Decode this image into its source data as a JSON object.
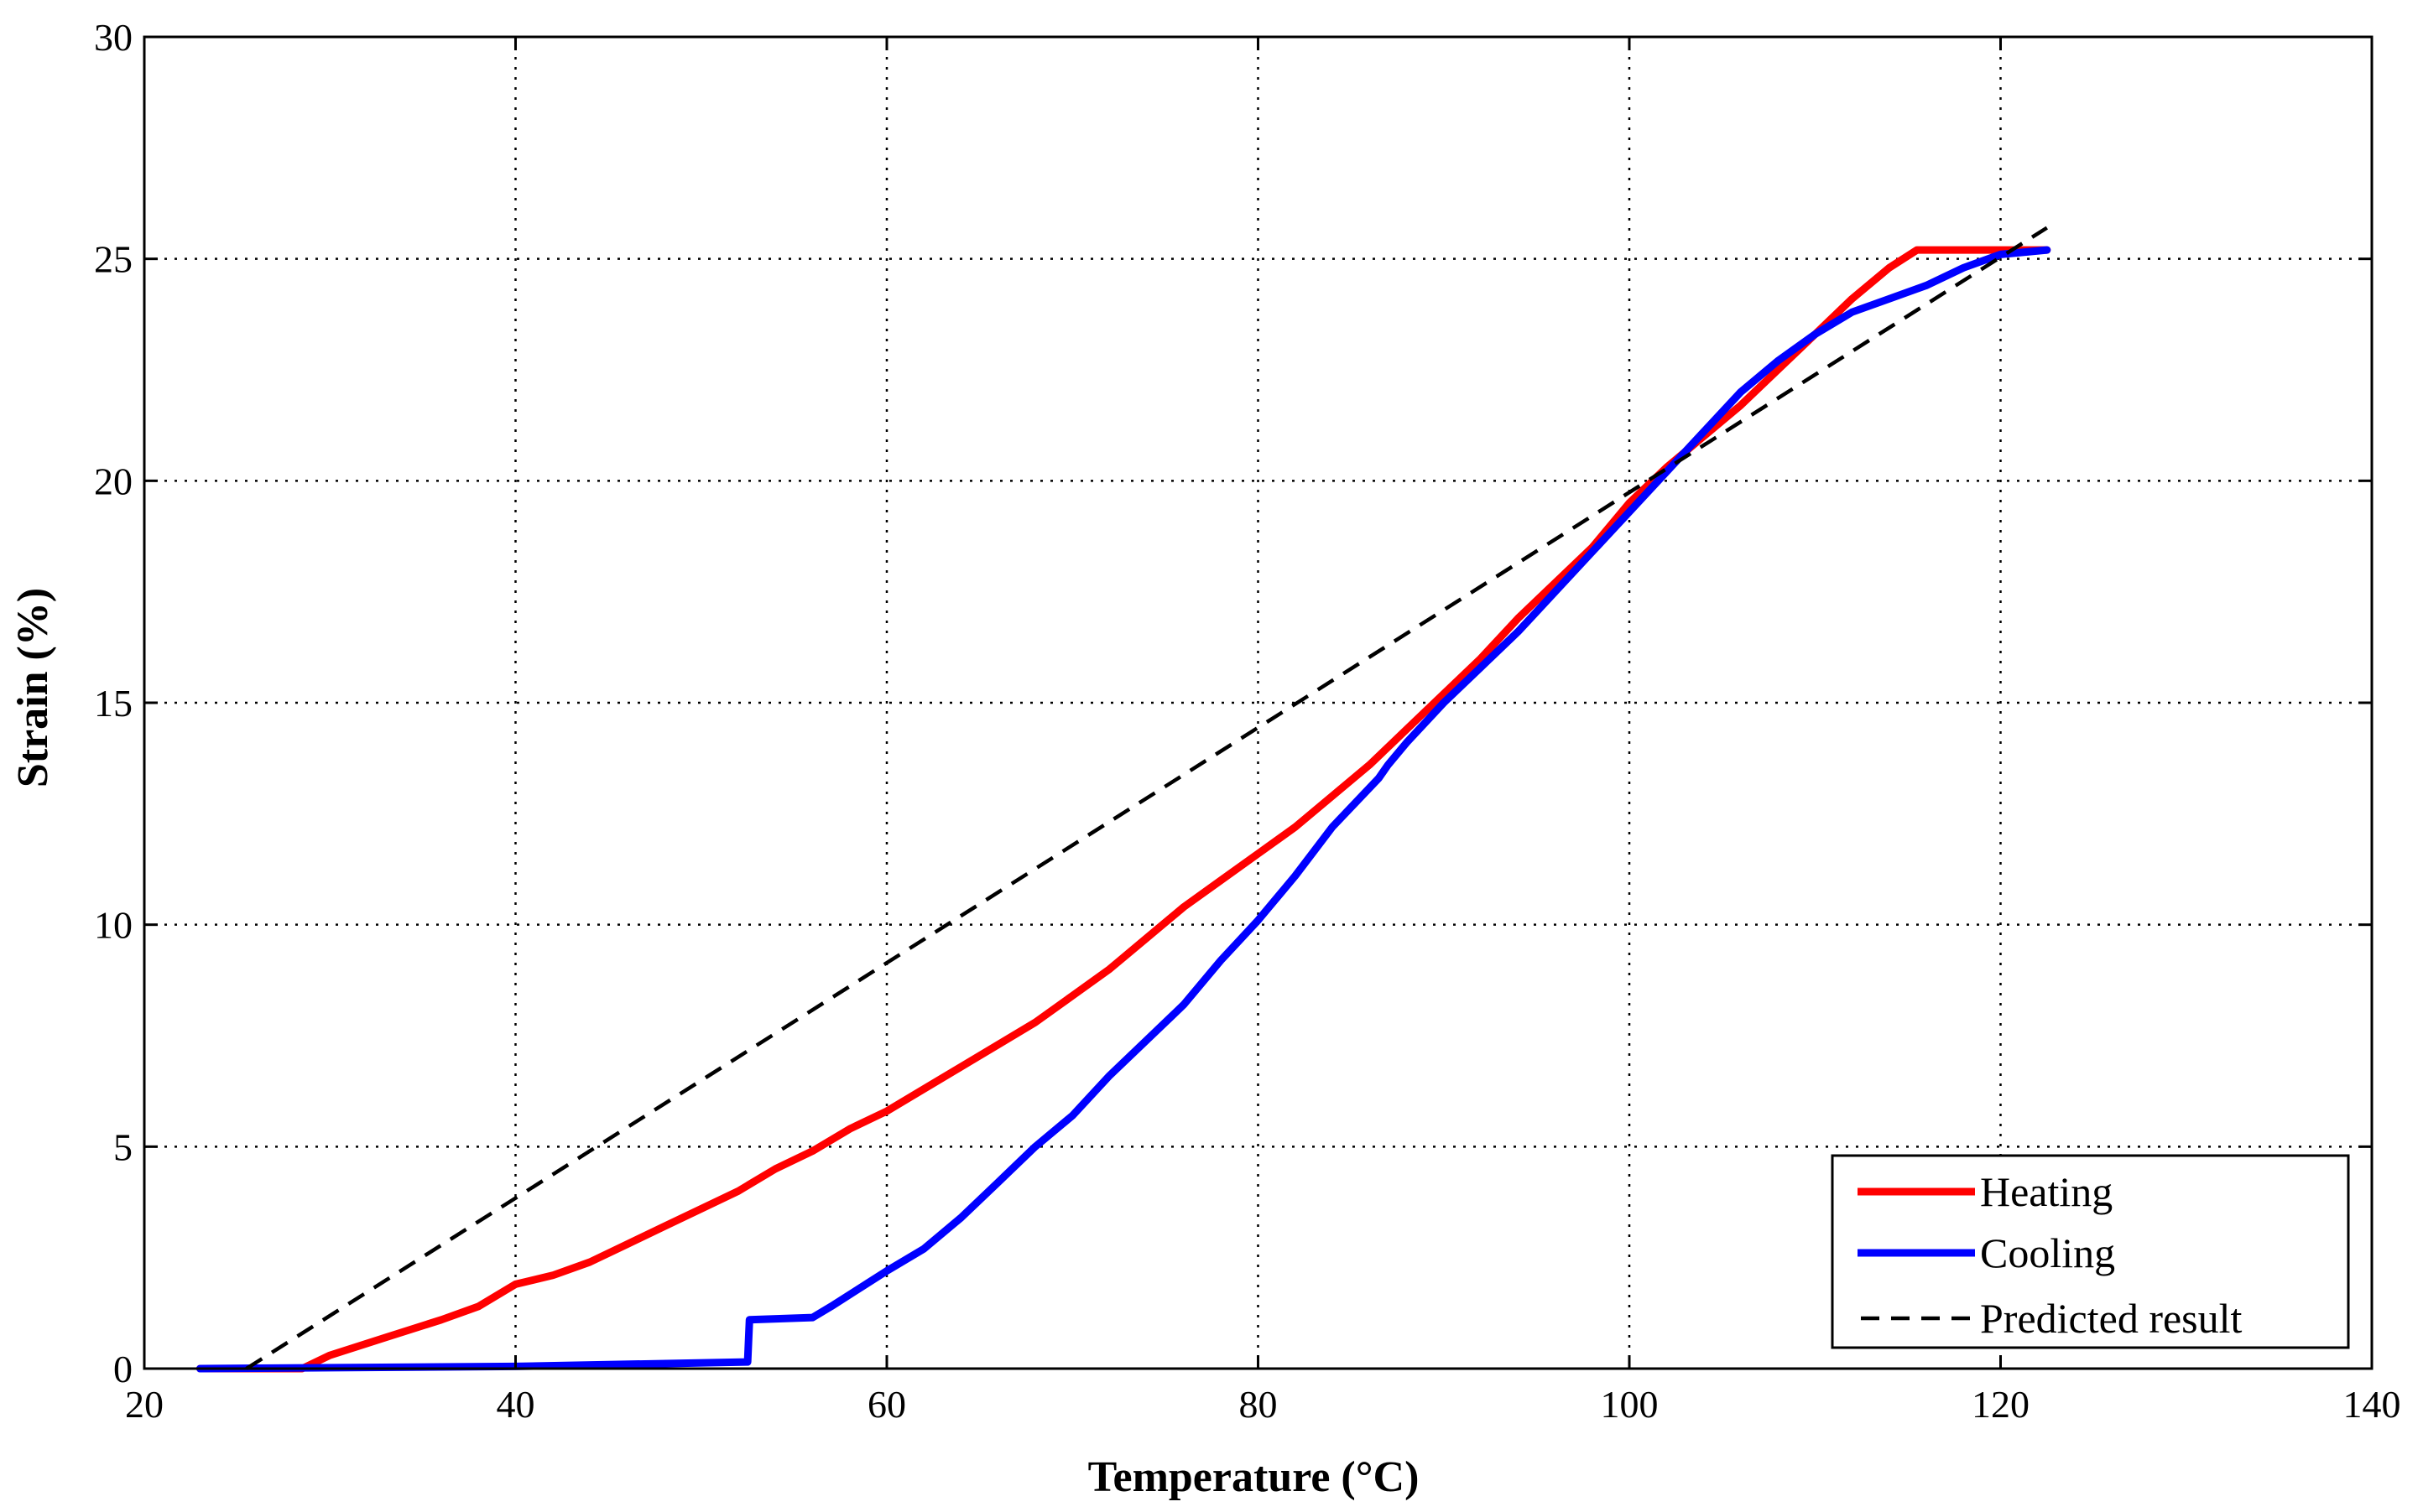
{
  "chart_data": {
    "type": "line",
    "title": "",
    "xlabel": "Temperature (°C)",
    "ylabel": "Strain (%)",
    "xlim": [
      20,
      140
    ],
    "ylim": [
      0,
      30
    ],
    "x_ticks": [
      20,
      40,
      60,
      80,
      100,
      120,
      140
    ],
    "y_ticks": [
      0,
      5,
      10,
      15,
      20,
      25,
      30
    ],
    "x_tick_labels": [
      "20",
      "40",
      "60",
      "80",
      "100",
      "120",
      "140"
    ],
    "y_tick_labels": [
      "0",
      "5",
      "10",
      "15",
      "20",
      "25",
      "30"
    ],
    "grid": "dotted",
    "legend_position": "bottom-right",
    "series": [
      {
        "name": "Heating",
        "color": "#ff0000",
        "style": "solid",
        "x": [
          23,
          28.5,
          30,
          33,
          36,
          38,
          40,
          42,
          44,
          46,
          48,
          50,
          52,
          54,
          56,
          58,
          60,
          62,
          64,
          66,
          68,
          70,
          72,
          74,
          76,
          78,
          80,
          82,
          84,
          86,
          88,
          90,
          92,
          94,
          96,
          98,
          100,
          102,
          104,
          106,
          108,
          110,
          112,
          114,
          115.5,
          117,
          120,
          122.5
        ],
        "values": [
          0,
          0,
          0.3,
          0.7,
          1.1,
          1.4,
          1.9,
          2.1,
          2.4,
          2.8,
          3.2,
          3.6,
          4.0,
          4.5,
          4.9,
          5.4,
          5.8,
          6.3,
          6.8,
          7.3,
          7.8,
          8.4,
          9.0,
          9.7,
          10.4,
          11.0,
          11.6,
          12.2,
          12.9,
          13.6,
          14.4,
          15.2,
          16.0,
          16.9,
          17.7,
          18.5,
          19.5,
          20.3,
          21.0,
          21.7,
          22.5,
          23.3,
          24.1,
          24.8,
          25.2,
          25.2,
          25.2,
          25.2
        ]
      },
      {
        "name": "Cooling",
        "color": "#0000ff",
        "style": "solid",
        "x": [
          23,
          40,
          52.5,
          52.6,
          56,
          57,
          60,
          62,
          64,
          66,
          68,
          70,
          72,
          74,
          76,
          78,
          80,
          82,
          84,
          86.5,
          87,
          88,
          90,
          92,
          94,
          96,
          98,
          100,
          102,
          104,
          106,
          108,
          110,
          112,
          114,
          116,
          118,
          120,
          122.5
        ],
        "values": [
          0,
          0.05,
          0.15,
          1.1,
          1.15,
          1.4,
          2.2,
          2.7,
          3.4,
          4.2,
          5.0,
          5.7,
          6.6,
          7.4,
          8.2,
          9.2,
          10.1,
          11.1,
          12.2,
          13.3,
          13.6,
          14.1,
          15.0,
          15.8,
          16.6,
          17.5,
          18.4,
          19.3,
          20.2,
          21.1,
          22.0,
          22.7,
          23.3,
          23.8,
          24.1,
          24.4,
          24.8,
          25.1,
          25.2
        ]
      },
      {
        "name": "Predicted result",
        "color": "#000000",
        "style": "dashed",
        "x": [
          25.5,
          122.5
        ],
        "values": [
          0,
          25.7
        ]
      }
    ]
  }
}
